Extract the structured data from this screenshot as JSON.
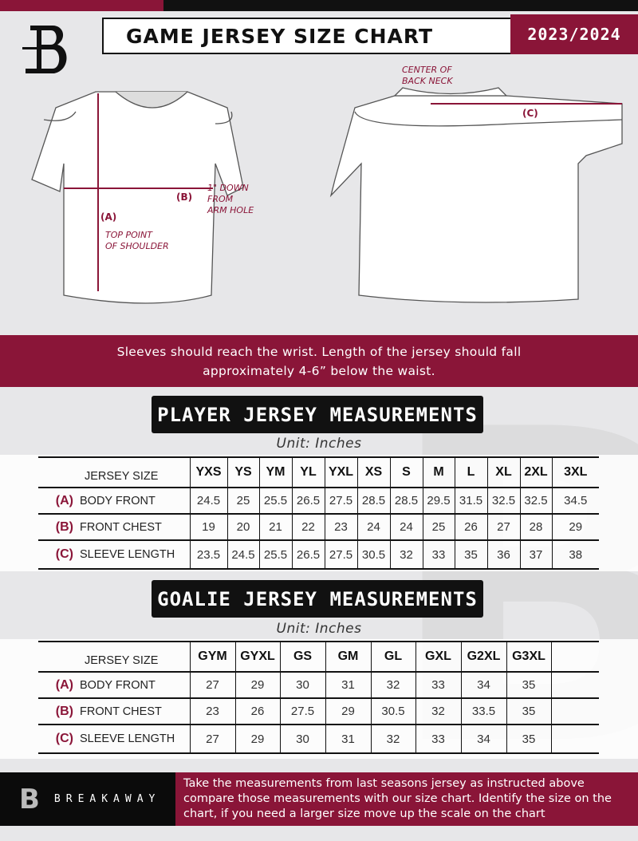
{
  "header": {
    "title": "GAME JERSEY SIZE CHART",
    "season": "2023/2024"
  },
  "diagram": {
    "front_notes": {
      "b_marker": "(B)",
      "b_note": [
        "1\" DOWN",
        "FROM",
        "ARM HOLE"
      ],
      "a_marker": "(A)",
      "a_note": [
        "TOP POINT",
        "OF SHOULDER"
      ]
    },
    "back_notes": {
      "c_note": [
        "CENTER OF",
        "BACK NECK"
      ],
      "c_marker": "(C)"
    }
  },
  "banner": {
    "line1": "Sleeves should reach the wrist. Length of the jersey should fall",
    "line2": "approximately 4-6” below the waist."
  },
  "player": {
    "title": "PLAYER JERSEY MEASUREMENTS",
    "unit": "Unit: Inches",
    "size_header": "JERSEY SIZE",
    "sizes": [
      "YXS",
      "YS",
      "YM",
      "YL",
      "YXL",
      "XS",
      "S",
      "M",
      "L",
      "XL",
      "2XL",
      "3XL"
    ],
    "rows": [
      {
        "letter": "(A)",
        "label": "BODY FRONT",
        "values": [
          "24.5",
          "25",
          "25.5",
          "26.5",
          "27.5",
          "28.5",
          "28.5",
          "29.5",
          "31.5",
          "32.5",
          "32.5",
          "34.5"
        ]
      },
      {
        "letter": "(B)",
        "label": "FRONT CHEST",
        "values": [
          "19",
          "20",
          "21",
          "22",
          "23",
          "24",
          "24",
          "25",
          "26",
          "27",
          "28",
          "29"
        ]
      },
      {
        "letter": "(C)",
        "label": "SLEEVE LENGTH",
        "values": [
          "23.5",
          "24.5",
          "25.5",
          "26.5",
          "27.5",
          "30.5",
          "32",
          "33",
          "35",
          "36",
          "37",
          "38"
        ]
      }
    ]
  },
  "goalie": {
    "title": "GOALIE JERSEY MEASUREMENTS",
    "unit": "Unit: Inches",
    "size_header": "JERSEY SIZE",
    "sizes": [
      "GYM",
      "GYXL",
      "GS",
      "GM",
      "GL",
      "GXL",
      "G2XL",
      "G3XL",
      ""
    ],
    "rows": [
      {
        "letter": "(A)",
        "label": "BODY FRONT",
        "values": [
          "27",
          "29",
          "30",
          "31",
          "32",
          "33",
          "34",
          "35",
          ""
        ]
      },
      {
        "letter": "(B)",
        "label": "FRONT CHEST",
        "values": [
          "23",
          "26",
          "27.5",
          "29",
          "30.5",
          "32",
          "33.5",
          "35",
          ""
        ]
      },
      {
        "letter": "(C)",
        "label": "SLEEVE LENGTH",
        "values": [
          "27",
          "29",
          "30",
          "31",
          "32",
          "33",
          "34",
          "35",
          ""
        ]
      }
    ]
  },
  "footer": {
    "brand": "BREAKAWAY",
    "logo_letter": "B",
    "text": "Take the measurements from last seasons jersey as instructed above compare those measurements  with our size chart. Identify the size on the chart, if you need a larger size move up the scale on the chart"
  },
  "colors": {
    "accent": "#8a1538",
    "dark": "#111111",
    "background": "#e7e7e9"
  }
}
